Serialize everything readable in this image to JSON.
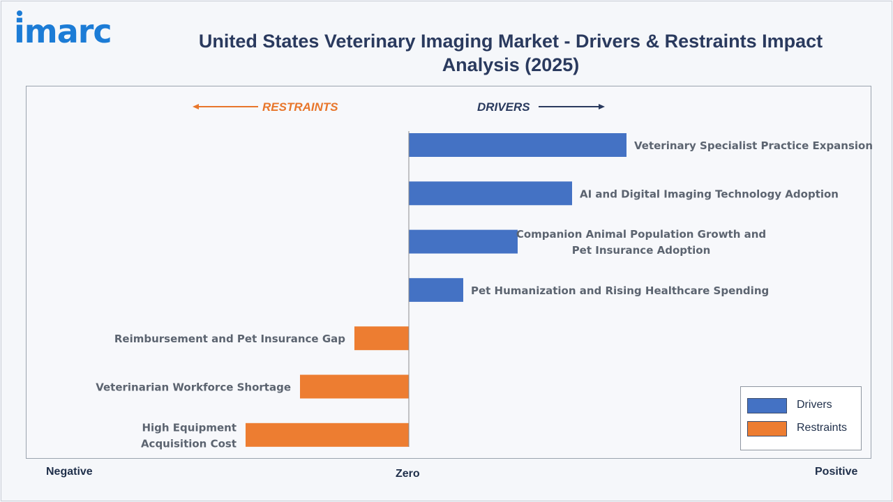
{
  "brand": {
    "logo_text": "imarc"
  },
  "title": "United States Veterinary Imaging Market - Drivers & Restraints Impact Analysis (2025)",
  "direction_labels": {
    "restraints": "RESTRAINTS",
    "drivers": "DRIVERS"
  },
  "axis_labels": {
    "negative": "Negative",
    "zero": "Zero",
    "positive": "Positive"
  },
  "colors": {
    "drivers": "#4472c4",
    "restraints": "#ed7d31",
    "title": "#2a3a5e",
    "brand": "#1c7cd6"
  },
  "legend": [
    {
      "name": "Drivers",
      "color": "#4472c4"
    },
    {
      "name": "Restraints",
      "color": "#ed7d31"
    }
  ],
  "chart_data": {
    "type": "bar",
    "orientation": "horizontal",
    "title": "United States Veterinary Imaging Market - Drivers & Restraints Impact Analysis (2025)",
    "xlabel": "",
    "ylabel": "",
    "xlim": [
      -3.0,
      4.0
    ],
    "grid": false,
    "legend_position": "bottom-right",
    "categories": [
      [
        "Veterinary Specialist Practice Expansion"
      ],
      [
        "AI and Digital Imaging Technology Adoption"
      ],
      [
        "Companion Animal Population Growth and",
        "Pet Insurance Adoption"
      ],
      [
        "Pet Humanization and Rising Healthcare Spending"
      ],
      [
        "Reimbursement and Pet Insurance Gap"
      ],
      [
        "Veterinarian Workforce Shortage"
      ],
      [
        "High Equipment",
        "Acquisition Cost"
      ]
    ],
    "series": [
      {
        "name": "Drivers",
        "values": [
          4.0,
          3.0,
          2.0,
          1.0,
          null,
          null,
          null
        ]
      },
      {
        "name": "Restraints",
        "values": [
          null,
          null,
          null,
          null,
          -1.0,
          -2.0,
          -3.0
        ]
      }
    ]
  }
}
